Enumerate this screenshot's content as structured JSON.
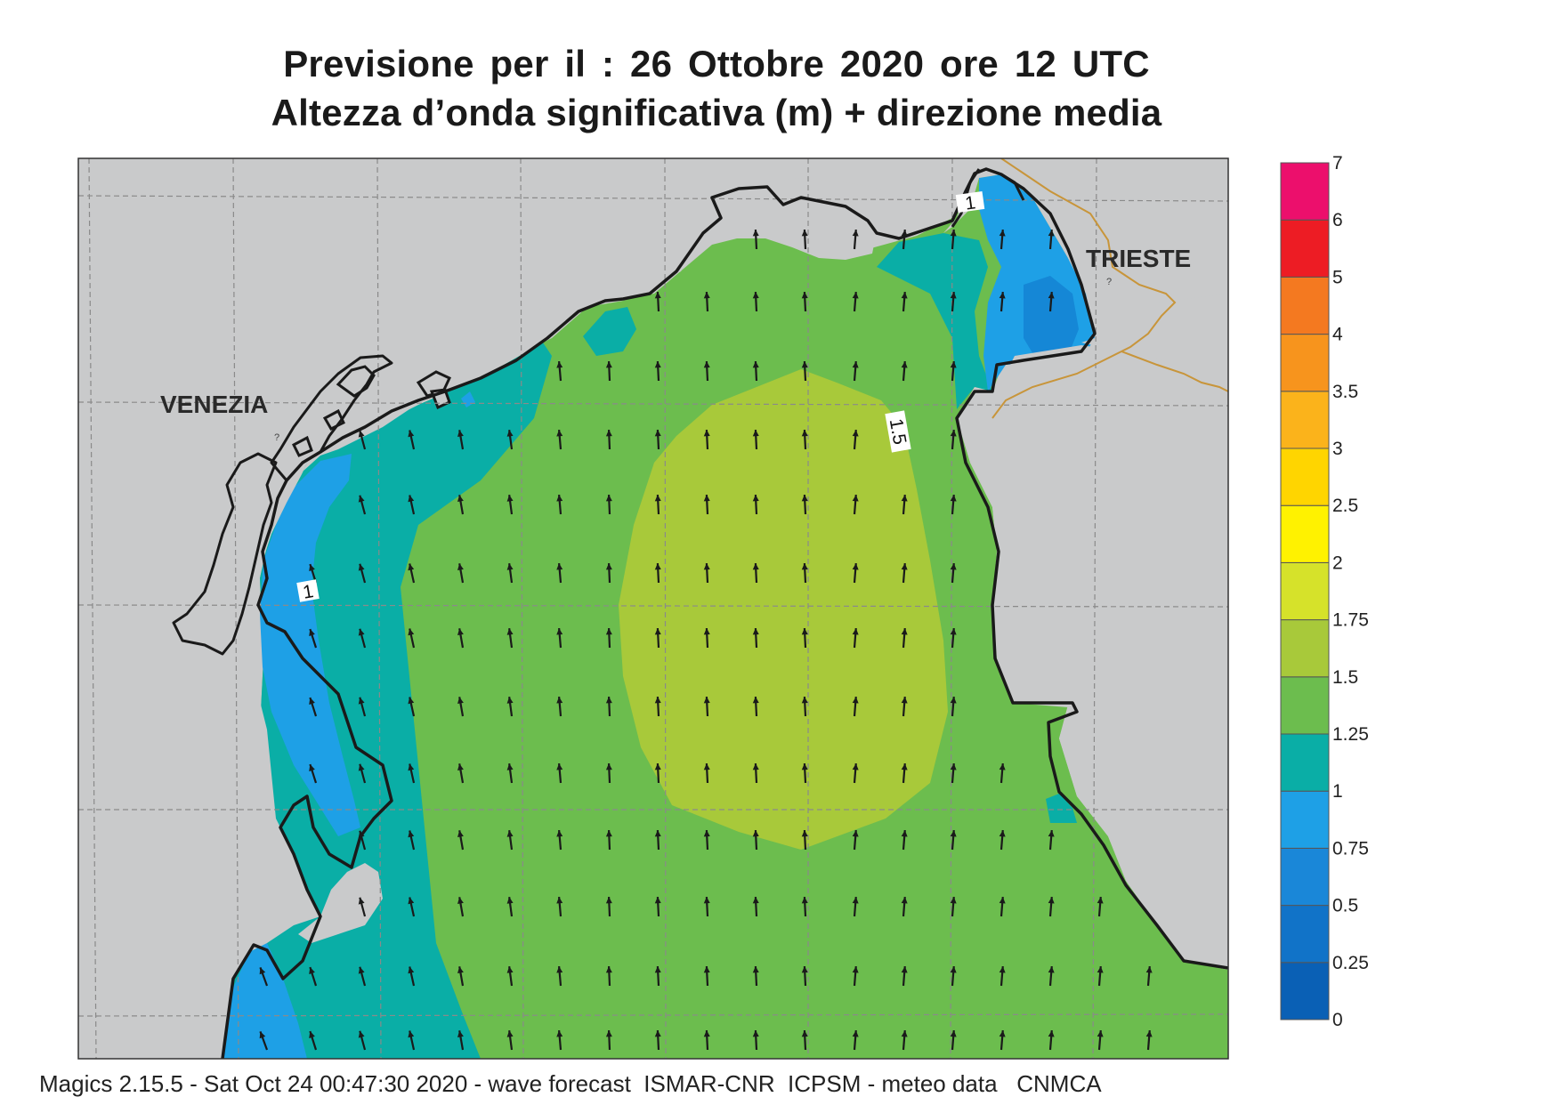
{
  "title_line1": "Previsione per il  :  26  Ottobre  2020   ore 12 UTC",
  "title_line2": "Altezza d’onda significativa (m) + direzione media",
  "cities": {
    "venezia": "VENEZIA",
    "trieste": "TRIESTE"
  },
  "contour_labels": [
    "1",
    "1.5",
    "1"
  ],
  "colorbar": {
    "levels": [
      "0",
      "0.25",
      "0.5",
      "0.75",
      "1",
      "1.25",
      "1.5",
      "1.75",
      "2",
      "2.5",
      "3",
      "3.5",
      "4",
      "5",
      "6",
      "7"
    ],
    "colors": [
      "#0a60b5",
      "#1173c8",
      "#1a87d8",
      "#1ea0e6",
      "#0aaea6",
      "#6cbd4e",
      "#a8c93a",
      "#d6e22a",
      "#fff200",
      "#ffd500",
      "#fbb31b",
      "#f7941d",
      "#f47920",
      "#ed1c24",
      "#ec0f6c"
    ]
  },
  "field_colors": {
    "land": "#c9cacb",
    "blue": "#1ea0e6",
    "teal": "#0aaea6",
    "green": "#6cbd4e",
    "lightgreen": "#a8c93a",
    "coast": "#1a1a1a",
    "border": "#c8953a"
  },
  "wave_direction": "north",
  "footer": "Magics 2.15.5 - Sat Oct 24 00:47:30 2020 - wave forecast  ISMAR-CNR  ICPSM - meteo data   CNMCA"
}
